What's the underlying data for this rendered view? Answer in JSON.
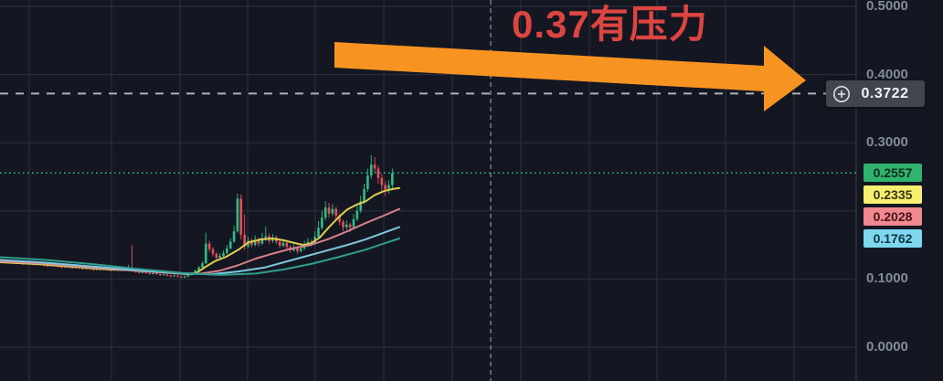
{
  "annotation": {
    "label": "0.37有压力",
    "color": "#dd4540",
    "arrow_color": "#f79421"
  },
  "alert": {
    "price": "0.3722"
  },
  "price_axis": {
    "visible_ticks": [
      "0.5000",
      "0.4000",
      "0.3000",
      "0.1000",
      "0.0000"
    ],
    "label_color": "#828c9a"
  },
  "price_badges": [
    {
      "role": "last-price",
      "value": "0.2557",
      "bg": "#2fb36e",
      "fg": "#0e2d1d"
    },
    {
      "role": "ma-fast",
      "value": "0.2335",
      "bg": "#f7ef70",
      "fg": "#3a3512"
    },
    {
      "role": "ma-mid",
      "value": "0.2028",
      "bg": "#f0888f",
      "fg": "#49141b"
    },
    {
      "role": "ma-slow",
      "value": "0.1762",
      "bg": "#7ed7ee",
      "fg": "#0e3642"
    }
  ],
  "chart_data": {
    "type": "candlestick",
    "title": "",
    "ylabel": "price",
    "ylim": [
      0.0,
      0.52
    ],
    "grid": true,
    "grid_prices": [
      0.5,
      0.4,
      0.3,
      0.2,
      0.1,
      0.0
    ],
    "last_price": 0.2557,
    "alert_price": 0.3722,
    "up_color": "#2ebd85",
    "down_color": "#e8505a",
    "candles_ohlc": [
      [
        0.126,
        0.128,
        0.1235,
        0.1245
      ],
      [
        0.1245,
        0.127,
        0.1238,
        0.1258
      ],
      [
        0.1258,
        0.1265,
        0.123,
        0.1242
      ],
      [
        0.1242,
        0.125,
        0.1218,
        0.123
      ],
      [
        0.123,
        0.1255,
        0.1222,
        0.1243
      ],
      [
        0.1243,
        0.125,
        0.122,
        0.1232
      ],
      [
        0.1232,
        0.124,
        0.1208,
        0.122
      ],
      [
        0.122,
        0.1245,
        0.1212,
        0.1232
      ],
      [
        0.1232,
        0.1238,
        0.121,
        0.1222
      ],
      [
        0.1222,
        0.123,
        0.1198,
        0.121
      ],
      [
        0.121,
        0.124,
        0.1202,
        0.1225
      ],
      [
        0.1225,
        0.1232,
        0.12,
        0.1212
      ],
      [
        0.1212,
        0.122,
        0.1188,
        0.12
      ],
      [
        0.12,
        0.121,
        0.1178,
        0.119
      ],
      [
        0.119,
        0.1215,
        0.1182,
        0.1203
      ],
      [
        0.1203,
        0.121,
        0.118,
        0.1192
      ],
      [
        0.1192,
        0.12,
        0.1168,
        0.118
      ],
      [
        0.118,
        0.119,
        0.1158,
        0.117
      ],
      [
        0.117,
        0.1196,
        0.1162,
        0.1183
      ],
      [
        0.1183,
        0.119,
        0.116,
        0.1172
      ],
      [
        0.1172,
        0.118,
        0.1148,
        0.116
      ],
      [
        0.116,
        0.1185,
        0.1152,
        0.1172
      ],
      [
        0.1172,
        0.1178,
        0.1148,
        0.116
      ],
      [
        0.116,
        0.1168,
        0.1136,
        0.1148
      ],
      [
        0.1148,
        0.117,
        0.114,
        0.1158
      ],
      [
        0.1158,
        0.1165,
        0.1134,
        0.1146
      ],
      [
        0.1146,
        0.1155,
        0.1122,
        0.1134
      ],
      [
        0.1134,
        0.1158,
        0.1126,
        0.1146
      ],
      [
        0.1146,
        0.1152,
        0.1122,
        0.1135
      ],
      [
        0.1135,
        0.116,
        0.1128,
        0.1148
      ],
      [
        0.1148,
        0.1155,
        0.1124,
        0.1136
      ],
      [
        0.1136,
        0.1145,
        0.1112,
        0.1125
      ],
      [
        0.1125,
        0.115,
        0.1118,
        0.1138
      ],
      [
        0.1138,
        0.1145,
        0.1114,
        0.1126
      ],
      [
        0.1126,
        0.1152,
        0.112,
        0.114
      ],
      [
        0.114,
        0.1146,
        0.1116,
        0.1128
      ],
      [
        0.1128,
        0.121,
        0.112,
        0.115
      ],
      [
        0.115,
        0.15,
        0.1108,
        0.1118
      ],
      [
        0.1118,
        0.113,
        0.1092,
        0.1105
      ],
      [
        0.1105,
        0.1112,
        0.108,
        0.1092
      ],
      [
        0.1092,
        0.1115,
        0.1085,
        0.1102
      ],
      [
        0.1102,
        0.1108,
        0.1076,
        0.1088
      ],
      [
        0.1088,
        0.1095,
        0.1062,
        0.1075
      ],
      [
        0.1075,
        0.1098,
        0.1068,
        0.1086
      ],
      [
        0.1086,
        0.1092,
        0.106,
        0.1072
      ],
      [
        0.1072,
        0.108,
        0.1045,
        0.1058
      ],
      [
        0.1058,
        0.108,
        0.105,
        0.1068
      ],
      [
        0.1068,
        0.1075,
        0.1038,
        0.1052
      ],
      [
        0.1052,
        0.1062,
        0.1025,
        0.104
      ],
      [
        0.104,
        0.1065,
        0.103,
        0.1052
      ],
      [
        0.1052,
        0.1058,
        0.102,
        0.1038
      ],
      [
        0.1038,
        0.1045,
        0.1008,
        0.1025
      ],
      [
        0.1025,
        0.1052,
        0.1015,
        0.1038
      ],
      [
        0.1038,
        0.1075,
        0.103,
        0.106
      ],
      [
        0.106,
        0.1105,
        0.1052,
        0.109
      ],
      [
        0.109,
        0.114,
        0.1082,
        0.1125
      ],
      [
        0.1125,
        0.119,
        0.1118,
        0.117
      ],
      [
        0.117,
        0.126,
        0.1162,
        0.123
      ],
      [
        0.123,
        0.168,
        0.1222,
        0.152
      ],
      [
        0.152,
        0.156,
        0.14,
        0.144
      ],
      [
        0.144,
        0.147,
        0.133,
        0.137
      ],
      [
        0.137,
        0.1395,
        0.1272,
        0.131
      ],
      [
        0.131,
        0.138,
        0.129,
        0.134
      ],
      [
        0.134,
        0.142,
        0.132,
        0.138
      ],
      [
        0.138,
        0.15,
        0.136,
        0.145
      ],
      [
        0.145,
        0.16,
        0.143,
        0.155
      ],
      [
        0.155,
        0.178,
        0.153,
        0.17
      ],
      [
        0.17,
        0.2252,
        0.168,
        0.218
      ],
      [
        0.218,
        0.224,
        0.158,
        0.165
      ],
      [
        0.165,
        0.195,
        0.143,
        0.148
      ],
      [
        0.148,
        0.162,
        0.145,
        0.156
      ],
      [
        0.156,
        0.16,
        0.1462,
        0.15
      ],
      [
        0.15,
        0.164,
        0.148,
        0.157
      ],
      [
        0.157,
        0.161,
        0.1475,
        0.152
      ],
      [
        0.152,
        0.168,
        0.15,
        0.16
      ],
      [
        0.16,
        0.177,
        0.156,
        0.163
      ],
      [
        0.163,
        0.167,
        0.152,
        0.156
      ],
      [
        0.156,
        0.166,
        0.153,
        0.161
      ],
      [
        0.161,
        0.164,
        0.151,
        0.155
      ],
      [
        0.155,
        0.158,
        0.1455,
        0.149
      ],
      [
        0.149,
        0.1575,
        0.1462,
        0.153
      ],
      [
        0.153,
        0.1555,
        0.143,
        0.147
      ],
      [
        0.147,
        0.15,
        0.1385,
        0.142
      ],
      [
        0.142,
        0.151,
        0.14,
        0.146
      ],
      [
        0.146,
        0.149,
        0.1372,
        0.141
      ],
      [
        0.141,
        0.15,
        0.139,
        0.145
      ],
      [
        0.145,
        0.156,
        0.1425,
        0.15
      ],
      [
        0.15,
        0.16,
        0.147,
        0.1545
      ],
      [
        0.1545,
        0.158,
        0.148,
        0.152
      ],
      [
        0.152,
        0.17,
        0.15,
        0.162
      ],
      [
        0.162,
        0.185,
        0.16,
        0.175
      ],
      [
        0.175,
        0.2,
        0.172,
        0.19
      ],
      [
        0.19,
        0.214,
        0.186,
        0.205
      ],
      [
        0.205,
        0.212,
        0.19,
        0.196
      ],
      [
        0.196,
        0.21,
        0.192,
        0.203
      ],
      [
        0.203,
        0.206,
        0.188,
        0.193
      ],
      [
        0.193,
        0.196,
        0.179,
        0.184
      ],
      [
        0.184,
        0.187,
        0.17,
        0.176
      ],
      [
        0.176,
        0.186,
        0.172,
        0.18
      ],
      [
        0.18,
        0.183,
        0.169,
        0.176
      ],
      [
        0.176,
        0.195,
        0.173,
        0.188
      ],
      [
        0.188,
        0.208,
        0.185,
        0.2
      ],
      [
        0.2,
        0.222,
        0.197,
        0.214
      ],
      [
        0.214,
        0.24,
        0.21,
        0.232
      ],
      [
        0.232,
        0.262,
        0.228,
        0.252
      ],
      [
        0.252,
        0.2815,
        0.247,
        0.268
      ],
      [
        0.268,
        0.279,
        0.255,
        0.262
      ],
      [
        0.262,
        0.266,
        0.24,
        0.248
      ],
      [
        0.248,
        0.254,
        0.23,
        0.238
      ],
      [
        0.238,
        0.243,
        0.222,
        0.231
      ],
      [
        0.231,
        0.245,
        0.225,
        0.238
      ],
      [
        0.238,
        0.262,
        0.233,
        0.2557
      ]
    ],
    "mas": [
      {
        "name": "ma-yellow",
        "color": "#ddcd4d",
        "end_value": 0.2335,
        "points": [
          [
            0,
            0.1247
          ],
          [
            40,
            0.122
          ],
          [
            80,
            0.118
          ],
          [
            120,
            0.114
          ],
          [
            160,
            0.1125
          ],
          [
            195,
            0.1085
          ],
          [
            205,
            0.1072
          ],
          [
            215,
            0.109
          ],
          [
            225,
            0.118
          ],
          [
            235,
            0.126
          ],
          [
            248,
            0.133
          ],
          [
            262,
            0.144
          ],
          [
            272,
            0.154
          ],
          [
            285,
            0.158
          ],
          [
            298,
            0.1595
          ],
          [
            310,
            0.157
          ],
          [
            322,
            0.153
          ],
          [
            332,
            0.15
          ],
          [
            340,
            0.152
          ],
          [
            350,
            0.161
          ],
          [
            360,
            0.176
          ],
          [
            370,
            0.19
          ],
          [
            380,
            0.202
          ],
          [
            390,
            0.209
          ],
          [
            400,
            0.214
          ],
          [
            410,
            0.223
          ],
          [
            420,
            0.229
          ],
          [
            430,
            0.232
          ],
          [
            437,
            0.2335
          ]
        ]
      },
      {
        "name": "ma-pink",
        "color": "#d9808d",
        "end_value": 0.2028,
        "points": [
          [
            0,
            0.126
          ],
          [
            50,
            0.1225
          ],
          [
            100,
            0.117
          ],
          [
            150,
            0.112
          ],
          [
            200,
            0.1075
          ],
          [
            220,
            0.108
          ],
          [
            240,
            0.112
          ],
          [
            260,
            0.12
          ],
          [
            280,
            0.13
          ],
          [
            300,
            0.138
          ],
          [
            320,
            0.145
          ],
          [
            340,
            0.15
          ],
          [
            360,
            0.159
          ],
          [
            380,
            0.17
          ],
          [
            400,
            0.182
          ],
          [
            420,
            0.193
          ],
          [
            437,
            0.2028
          ]
        ]
      },
      {
        "name": "ma-lightblue",
        "color": "#7fc8de",
        "end_value": 0.1762,
        "points": [
          [
            0,
            0.128
          ],
          [
            50,
            0.124
          ],
          [
            100,
            0.1185
          ],
          [
            150,
            0.113
          ],
          [
            200,
            0.108
          ],
          [
            230,
            0.107
          ],
          [
            260,
            0.111
          ],
          [
            290,
            0.117
          ],
          [
            320,
            0.128
          ],
          [
            350,
            0.139
          ],
          [
            380,
            0.15
          ],
          [
            400,
            0.158
          ],
          [
            420,
            0.168
          ],
          [
            437,
            0.1762
          ]
        ]
      },
      {
        "name": "ma-teal",
        "color": "#2e9e8f",
        "end_value": 0.1595,
        "points": [
          [
            0,
            0.132
          ],
          [
            50,
            0.128
          ],
          [
            100,
            0.122
          ],
          [
            150,
            0.115
          ],
          [
            200,
            0.109
          ],
          [
            240,
            0.106
          ],
          [
            280,
            0.108
          ],
          [
            310,
            0.114
          ],
          [
            340,
            0.122
          ],
          [
            370,
            0.132
          ],
          [
            400,
            0.143
          ],
          [
            420,
            0.152
          ],
          [
            437,
            0.1595
          ]
        ]
      }
    ]
  },
  "layout_hints": {
    "v_gridlines_x": [
      32,
      122,
      197,
      271,
      345,
      420,
      495,
      570,
      645,
      719,
      794,
      869
    ],
    "plot_right_x": 937,
    "crosshair_x": 537
  }
}
